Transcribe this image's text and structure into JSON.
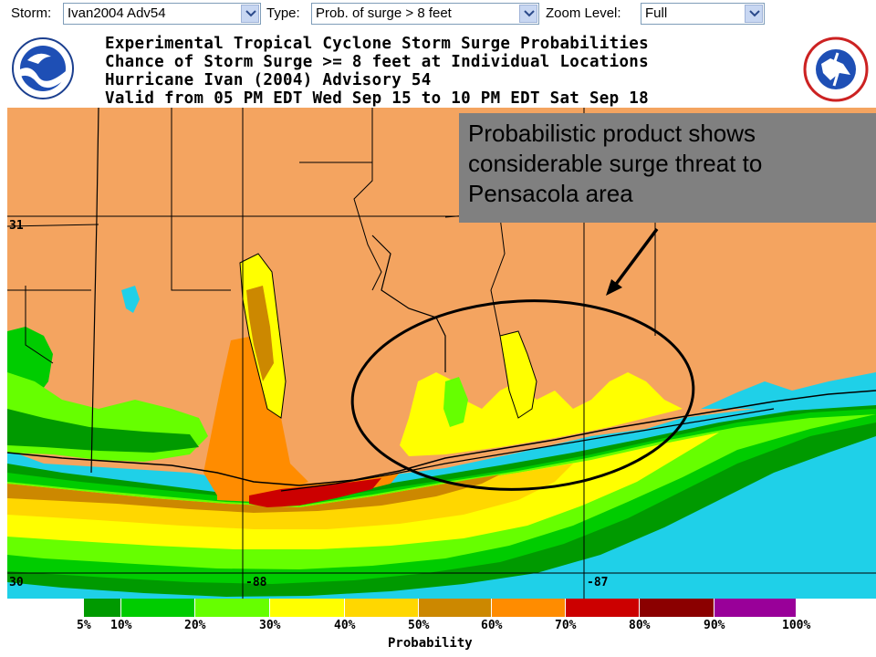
{
  "toolbar": {
    "storm_label": "Storm:",
    "storm_value": "Ivan2004 Adv54",
    "type_label": "Type:",
    "type_value": "Prob. of surge > 8 feet",
    "zoom_label": "Zoom Level:",
    "zoom_value": "Full"
  },
  "header": {
    "lines": [
      "Experimental Tropical Cyclone Storm Surge Probabilities",
      "Chance of Storm Surge >= 8 feet at Individual Locations",
      "Hurricane Ivan (2004) Advisory 54",
      "Valid from 05 PM EDT Wed Sep 15 to 10 PM EDT Sat Sep 18"
    ]
  },
  "map": {
    "lat_labels": [
      "31",
      "30"
    ],
    "lon_labels": [
      "-88",
      "-87"
    ],
    "colors": {
      "land": "#f4a460",
      "water": "#1fd0e8",
      "outline": "#000000"
    }
  },
  "callout": {
    "text": "Probabilistic product shows considerable surge threat to Pensacola area"
  },
  "legend": {
    "title": "Probability",
    "ticks": [
      "5%",
      "10%",
      "20%",
      "30%",
      "40%",
      "50%",
      "60%",
      "70%",
      "80%",
      "90%",
      "100%"
    ],
    "colors": [
      "#009a00",
      "#00cc00",
      "#66ff00",
      "#ffff00",
      "#ffd700",
      "#cc8800",
      "#ff8c00",
      "#cc0000",
      "#8b0000",
      "#990099"
    ]
  }
}
